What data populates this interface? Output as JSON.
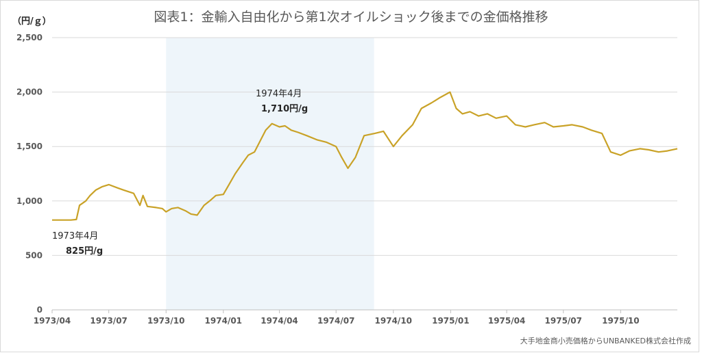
{
  "chart_data": {
    "type": "line",
    "title": "図表1：金輸入自由化から第1次オイルショック後までの金価格推移",
    "ylabel": "（円/ｇ）",
    "source": "大手地金商小売価格からUNBANKED株式会社作成",
    "ylim": [
      0,
      2500
    ],
    "yticks": [
      "0",
      "500",
      "1,000",
      "1,500",
      "2,000",
      "2,500"
    ],
    "ytick_values": [
      0,
      500,
      1000,
      1500,
      2000,
      2500
    ],
    "xlim": [
      "1973-04-01",
      "1975-12-31"
    ],
    "xticks": [
      "1973/04",
      "1973/07",
      "1973/10",
      "1974/01",
      "1974/04",
      "1974/07",
      "1974/10",
      "1975/01",
      "1975/04",
      "1975/07",
      "1975/10"
    ],
    "xtick_dates": [
      "1973-04-01",
      "1973-07-01",
      "1973-10-01",
      "1974-01-01",
      "1974-04-01",
      "1974-07-01",
      "1974-10-01",
      "1975-01-01",
      "1975-04-01",
      "1975-07-01",
      "1975-10-01"
    ],
    "grid": true,
    "line_color": "#c9a227",
    "shade_color": "#eef5fa",
    "shaded_period": [
      "1973-10-01",
      "1974-08-31"
    ],
    "series": [
      {
        "x": [
          "1973-04-01",
          "1973-04-15",
          "1973-05-01",
          "1973-05-10",
          "1973-05-15",
          "1973-05-25",
          "1973-06-01",
          "1973-06-10",
          "1973-06-20",
          "1973-07-01",
          "1973-07-15",
          "1973-07-25",
          "1973-08-10",
          "1973-08-20",
          "1973-08-25",
          "1973-09-01",
          "1973-09-15",
          "1973-09-25",
          "1973-10-01",
          "1973-10-10",
          "1973-10-20",
          "1973-11-01",
          "1973-11-10",
          "1973-11-20",
          "1973-12-01",
          "1973-12-10",
          "1973-12-20",
          "1974-01-01",
          "1974-01-10",
          "1974-01-20",
          "1974-02-01",
          "1974-02-10",
          "1974-02-20",
          "1974-03-01",
          "1974-03-10",
          "1974-03-20",
          "1974-04-01",
          "1974-04-10",
          "1974-04-20",
          "1974-05-01",
          "1974-05-15",
          "1974-06-01",
          "1974-06-15",
          "1974-07-01",
          "1974-07-10",
          "1974-07-20",
          "1974-08-01",
          "1974-08-15",
          "1974-09-01",
          "1974-09-15",
          "1974-10-01",
          "1974-10-15",
          "1974-11-01",
          "1974-11-15",
          "1974-12-01",
          "1974-12-15",
          "1974-12-31",
          "1975-01-10",
          "1975-01-20",
          "1975-02-01",
          "1975-02-15",
          "1975-03-01",
          "1975-03-15",
          "1975-04-01",
          "1975-04-15",
          "1975-05-01",
          "1975-05-15",
          "1975-06-01",
          "1975-06-15",
          "1975-07-01",
          "1975-07-15",
          "1975-08-01",
          "1975-08-15",
          "1975-09-01",
          "1975-09-15",
          "1975-10-01",
          "1975-10-15",
          "1975-11-01",
          "1975-11-15",
          "1975-12-01",
          "1975-12-15",
          "1975-12-31"
        ],
        "y": [
          825,
          825,
          825,
          830,
          960,
          1000,
          1050,
          1100,
          1130,
          1150,
          1120,
          1100,
          1070,
          960,
          1050,
          950,
          940,
          930,
          900,
          930,
          940,
          910,
          880,
          870,
          960,
          1000,
          1050,
          1060,
          1150,
          1250,
          1350,
          1420,
          1450,
          1550,
          1650,
          1710,
          1680,
          1690,
          1650,
          1630,
          1600,
          1560,
          1540,
          1500,
          1400,
          1300,
          1400,
          1600,
          1620,
          1640,
          1500,
          1600,
          1700,
          1850,
          1900,
          1950,
          2000,
          1850,
          1800,
          1820,
          1780,
          1800,
          1760,
          1780,
          1700,
          1680,
          1700,
          1720,
          1680,
          1690,
          1700,
          1680,
          1650,
          1620,
          1450,
          1420,
          1460,
          1480,
          1470,
          1450,
          1460,
          1480
        ]
      }
    ],
    "annotations": [
      {
        "date_text": "1973年4月",
        "value_text": "825円/g",
        "x": "1973-04-01",
        "y": 825
      },
      {
        "date_text": "1974年4月",
        "value_text": "1,710円/g",
        "x": "1974-03-20",
        "y": 1710
      }
    ]
  }
}
